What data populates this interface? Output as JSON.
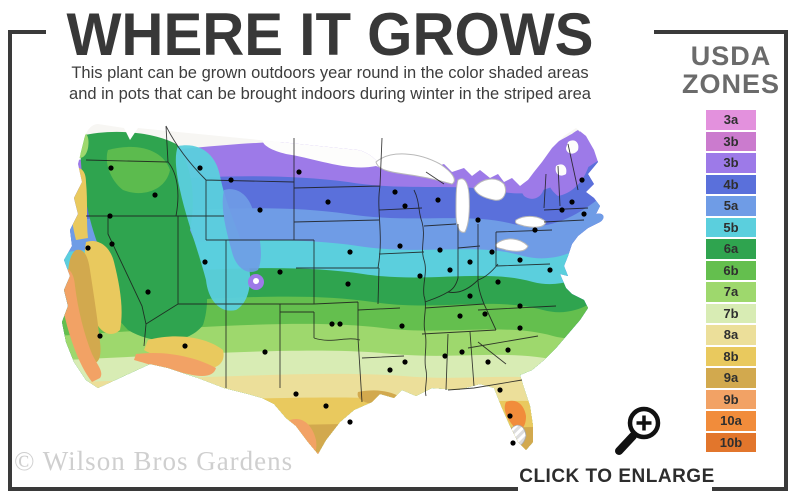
{
  "page": {
    "frame_color": "#3a3a3a"
  },
  "header": {
    "title": "WHERE IT GROWS",
    "subtitle_lines": [
      "This plant can be grown outdoors year round in the color shaded areas",
      "and in pots that can be brought indoors during winter in the striped area"
    ]
  },
  "legend": {
    "heading_line1": "USDA",
    "heading_line2": "ZONES",
    "zones": [
      {
        "label": "3a",
        "color": "#e391dd"
      },
      {
        "label": "3b",
        "color": "#cb7bce"
      },
      {
        "label": "3b",
        "color": "#9d7ae8"
      },
      {
        "label": "4b",
        "color": "#5a70db"
      },
      {
        "label": "5a",
        "color": "#6f9ce6"
      },
      {
        "label": "5b",
        "color": "#5bcfdd"
      },
      {
        "label": "6a",
        "color": "#2fa44f"
      },
      {
        "label": "6b",
        "color": "#64bf4e"
      },
      {
        "label": "7a",
        "color": "#9ed86d"
      },
      {
        "label": "7b",
        "color": "#d8ecb4"
      },
      {
        "label": "8a",
        "color": "#ecdf9a"
      },
      {
        "label": "8b",
        "color": "#e9c95e"
      },
      {
        "label": "9a",
        "color": "#d2a94e"
      },
      {
        "label": "9b",
        "color": "#f2a265"
      },
      {
        "label": "10a",
        "color": "#f18c3b"
      },
      {
        "label": "10b",
        "color": "#e2762c"
      }
    ]
  },
  "map": {
    "marker_color": "#000000",
    "lake_color": "#ffffff",
    "border_color": "#1c1c1c"
  },
  "footer": {
    "watermark": "© Wilson Bros Gardens",
    "enlarge_label": "CLICK TO ENLARGE"
  }
}
